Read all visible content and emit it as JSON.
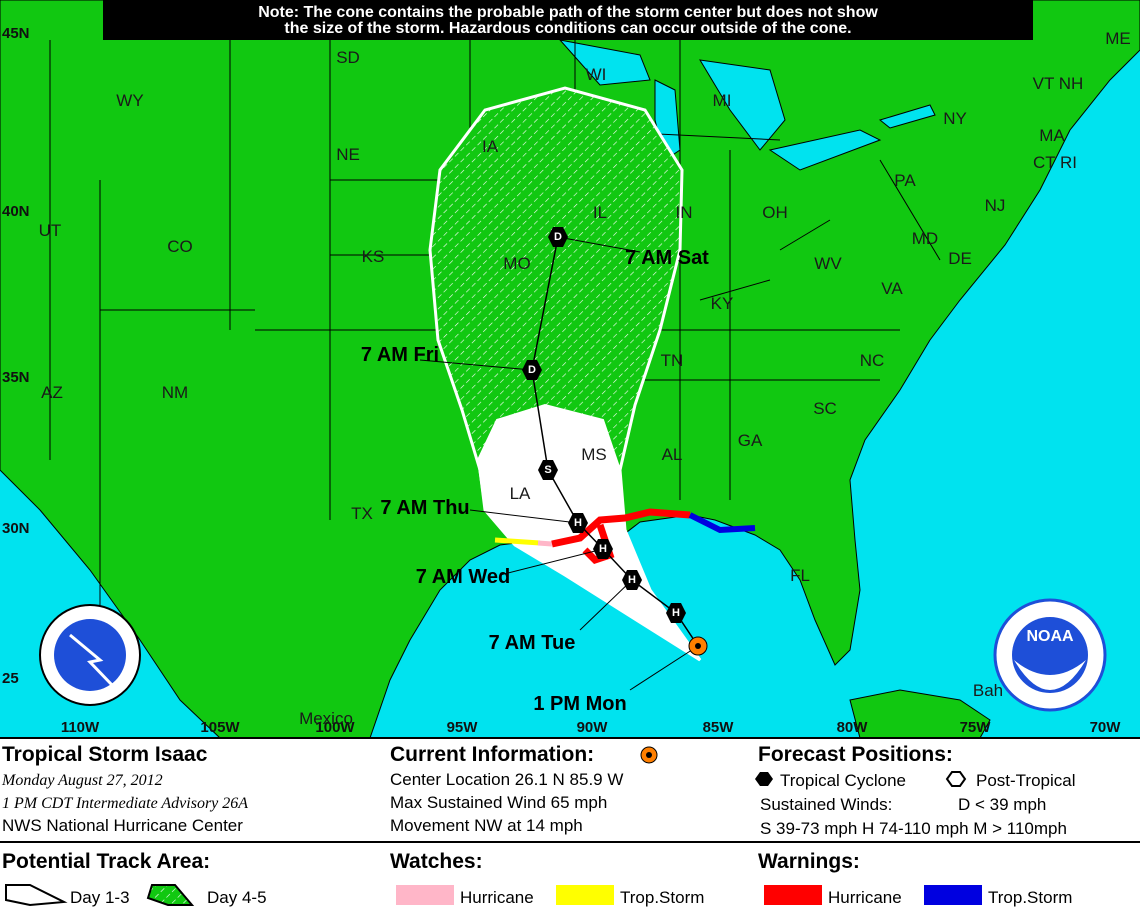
{
  "note": [
    "Note: The cone contains the probable path of the storm center but does not show",
    "the size of the storm. Hazardous conditions can occur outside of the cone."
  ],
  "map": {
    "lat_labels": [
      "45N",
      "40N",
      "35N",
      "30N",
      "25"
    ],
    "lon_labels": [
      "110W",
      "105W",
      "100W",
      "95W",
      "90W",
      "85W",
      "80W",
      "75W",
      "70W"
    ],
    "state_labels": [
      "WY",
      "SD",
      "WI",
      "MI",
      "NY",
      "ME",
      "VT NH",
      "MA",
      "CT RI",
      "NJ",
      "PA",
      "OH",
      "IN",
      "IL",
      "IA",
      "NE",
      "UT",
      "CO",
      "KS",
      "MO",
      "WV",
      "MD",
      "DE",
      "VA",
      "KY",
      "TN",
      "NC",
      "SC",
      "GA",
      "AL",
      "MS",
      "LA",
      "TX",
      "AZ",
      "NM",
      "FL",
      "Mexico",
      "Bah"
    ],
    "forecast_labels": [
      "7 AM Sat",
      "7 AM Fri",
      "7 AM Thu",
      "7 AM Wed",
      "7 AM Tue",
      "1 PM Mon"
    ],
    "position_markers": [
      "D",
      "D",
      "S",
      "H",
      "H",
      "H",
      "H"
    ],
    "logo_text": "NOAA"
  },
  "legend": {
    "storm_name": "Tropical Storm Isaac",
    "date": "Monday    August 27, 2012",
    "advisory": "1 PM CDT Intermediate Advisory 26A",
    "center": "NWS National Hurricane Center",
    "current_title": "Current Information:",
    "current_lines": [
      "Center Location 26.1 N  85.9 W",
      "Max Sustained Wind  65 mph",
      "Movement NW at  14 mph"
    ],
    "forecast_title": "Forecast Positions:",
    "tropical_cyclone": "Tropical Cyclone",
    "post_tropical": "Post-Tropical",
    "sustained_winds": "Sustained Winds:",
    "d_label": "D  < 39 mph",
    "wind_classes": "S  39-73 mph  H  74-110 mph  M  > 110mph",
    "track_title": "Potential Track Area:",
    "day13": "Day 1-3",
    "day45": "Day 4-5",
    "watches_title": "Watches:",
    "warnings_title": "Warnings:",
    "watch_items": [
      "Hurricane",
      "Trop.Storm"
    ],
    "warning_items": [
      "Hurricane",
      "Trop.Storm"
    ]
  }
}
